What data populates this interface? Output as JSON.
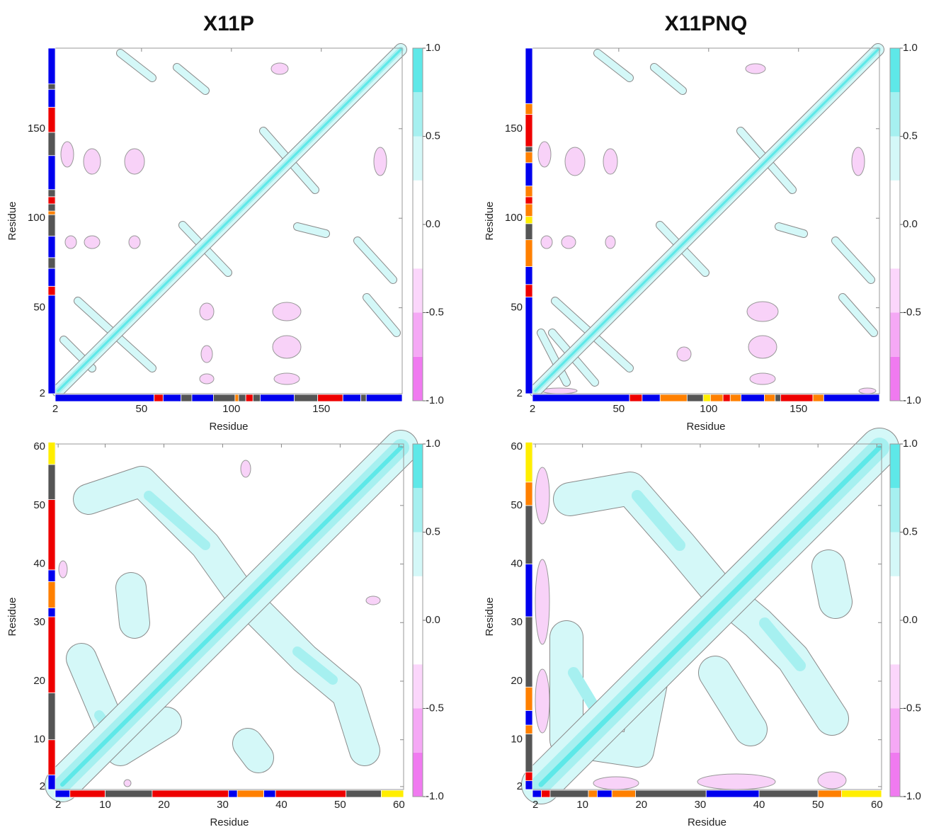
{
  "chart_data": [
    {
      "type": "contour",
      "title": "X11P",
      "xlabel": "Residue",
      "ylabel": "Residue",
      "xlim": [
        2,
        195
      ],
      "ylim": [
        2,
        195
      ],
      "xticks": [
        2,
        50,
        100,
        150
      ],
      "yticks": [
        2,
        50,
        100,
        150
      ],
      "colorbar": {
        "lim": [
          -1,
          1
        ],
        "ticks": [
          {
            "value": 1,
            "label": "1.0"
          },
          {
            "value": 0.5,
            "label": "0.5"
          },
          {
            "value": 0,
            "label": "0.0"
          },
          {
            "value": -0.5,
            "label": "-0.5"
          },
          {
            "value": -1,
            "label": "-1.0"
          }
        ],
        "levels": [
          -1,
          -0.75,
          -0.5,
          -0.25,
          0.25,
          0.5,
          0.75,
          1
        ],
        "colors": [
          "#f07af0",
          "#f5a8f5",
          "#fbd6fb",
          "#ffffff",
          "#d4f8f8",
          "#a6f0f0",
          "#5ee8e8"
        ]
      },
      "segments": [
        {
          "start": 2,
          "end": 57,
          "color": "#0000ee"
        },
        {
          "start": 57,
          "end": 62,
          "color": "#ee0000"
        },
        {
          "start": 62,
          "end": 72,
          "color": "#0000ee"
        },
        {
          "start": 72,
          "end": 78,
          "color": "#555555"
        },
        {
          "start": 78,
          "end": 90,
          "color": "#0000ee"
        },
        {
          "start": 90,
          "end": 102,
          "color": "#555555"
        },
        {
          "start": 102,
          "end": 104,
          "color": "#ff8000"
        },
        {
          "start": 104,
          "end": 108,
          "color": "#555555"
        },
        {
          "start": 108,
          "end": 112,
          "color": "#ee0000"
        },
        {
          "start": 112,
          "end": 116,
          "color": "#555555"
        },
        {
          "start": 116,
          "end": 135,
          "color": "#0000ee"
        },
        {
          "start": 135,
          "end": 148,
          "color": "#555555"
        },
        {
          "start": 148,
          "end": 162,
          "color": "#ee0000"
        },
        {
          "start": 162,
          "end": 172,
          "color": "#0000ee"
        },
        {
          "start": 172,
          "end": 175,
          "color": "#555555"
        },
        {
          "start": 175,
          "end": 195,
          "color": "#0000ee"
        }
      ]
    },
    {
      "type": "contour",
      "title": "X11PNQ",
      "xlabel": "Residue",
      "ylabel": "Residue",
      "xlim": [
        2,
        195
      ],
      "ylim": [
        2,
        195
      ],
      "xticks": [
        2,
        50,
        100,
        150
      ],
      "yticks": [
        2,
        50,
        100,
        150
      ],
      "colorbar": {
        "lim": [
          -1,
          1
        ],
        "ticks": [
          {
            "value": 1,
            "label": "1.0"
          },
          {
            "value": 0.5,
            "label": "0.5"
          },
          {
            "value": 0,
            "label": "0.0"
          },
          {
            "value": -0.5,
            "label": "-0.5"
          },
          {
            "value": -1,
            "label": "-1.0"
          }
        ],
        "levels": [
          -1,
          -0.75,
          -0.5,
          -0.25,
          0.25,
          0.5,
          0.75,
          1
        ],
        "colors": [
          "#f07af0",
          "#f5a8f5",
          "#fbd6fb",
          "#ffffff",
          "#d4f8f8",
          "#a6f0f0",
          "#5ee8e8"
        ]
      },
      "segments": [
        {
          "start": 2,
          "end": 56,
          "color": "#0000ee"
        },
        {
          "start": 56,
          "end": 63,
          "color": "#ee0000"
        },
        {
          "start": 63,
          "end": 73,
          "color": "#0000ee"
        },
        {
          "start": 73,
          "end": 88,
          "color": "#ff8000"
        },
        {
          "start": 88,
          "end": 97,
          "color": "#555555"
        },
        {
          "start": 97,
          "end": 101,
          "color": "#ffee00"
        },
        {
          "start": 101,
          "end": 108,
          "color": "#ff8000"
        },
        {
          "start": 108,
          "end": 112,
          "color": "#ee0000"
        },
        {
          "start": 112,
          "end": 118,
          "color": "#ff8000"
        },
        {
          "start": 118,
          "end": 131,
          "color": "#0000ee"
        },
        {
          "start": 131,
          "end": 137,
          "color": "#ff8000"
        },
        {
          "start": 137,
          "end": 140,
          "color": "#555555"
        },
        {
          "start": 140,
          "end": 158,
          "color": "#ee0000"
        },
        {
          "start": 158,
          "end": 164,
          "color": "#ff8000"
        },
        {
          "start": 164,
          "end": 195,
          "color": "#0000ee"
        }
      ]
    },
    {
      "type": "contour",
      "xlabel": "Residue",
      "ylabel": "Residue",
      "xlim": [
        1.5,
        60.8
      ],
      "ylim": [
        1.5,
        60.5
      ],
      "xticks": [
        2,
        10,
        20,
        30,
        40,
        50,
        60
      ],
      "yticks": [
        2,
        10,
        20,
        30,
        40,
        50,
        60
      ],
      "colorbar": {
        "lim": [
          -1,
          1
        ],
        "ticks": [
          {
            "value": 1,
            "label": "1.0"
          },
          {
            "value": 0.5,
            "label": "0.5"
          },
          {
            "value": 0,
            "label": "0.0"
          },
          {
            "value": -0.5,
            "label": "-0.5"
          },
          {
            "value": -1,
            "label": "-1.0"
          }
        ],
        "levels": [
          -1,
          -0.75,
          -0.5,
          -0.25,
          0.25,
          0.5,
          0.75,
          1
        ],
        "colors": [
          "#f07af0",
          "#f5a8f5",
          "#fbd6fb",
          "#ffffff",
          "#d4f8f8",
          "#a6f0f0",
          "#5ee8e8"
        ]
      },
      "segments": [
        {
          "start": 1.5,
          "end": 4,
          "color": "#0000ee"
        },
        {
          "start": 4,
          "end": 10,
          "color": "#ee0000"
        },
        {
          "start": 10,
          "end": 18,
          "color": "#555555"
        },
        {
          "start": 18,
          "end": 31,
          "color": "#ee0000"
        },
        {
          "start": 31,
          "end": 32.5,
          "color": "#0000ee"
        },
        {
          "start": 32.5,
          "end": 37,
          "color": "#ff8000"
        },
        {
          "start": 37,
          "end": 39,
          "color": "#0000ee"
        },
        {
          "start": 39,
          "end": 51,
          "color": "#ee0000"
        },
        {
          "start": 51,
          "end": 57,
          "color": "#555555"
        },
        {
          "start": 57,
          "end": 60.8,
          "color": "#ffee00"
        }
      ]
    },
    {
      "type": "contour",
      "xlabel": "Residue",
      "ylabel": "Residue",
      "xlim": [
        1.5,
        60.8
      ],
      "ylim": [
        1.5,
        60.5
      ],
      "xticks": [
        2,
        10,
        20,
        30,
        40,
        50,
        60
      ],
      "yticks": [
        2,
        10,
        20,
        30,
        40,
        50,
        60
      ],
      "colorbar": {
        "lim": [
          -1,
          1
        ],
        "ticks": [
          {
            "value": 1,
            "label": "1.0"
          },
          {
            "value": 0.5,
            "label": "0.5"
          },
          {
            "value": 0,
            "label": "0.0"
          },
          {
            "value": -0.5,
            "label": "-0.5"
          },
          {
            "value": -1,
            "label": "-1.0"
          }
        ],
        "levels": [
          -1,
          -0.75,
          -0.5,
          -0.25,
          0.25,
          0.5,
          0.75,
          1
        ],
        "colors": [
          "#f07af0",
          "#f5a8f5",
          "#fbd6fb",
          "#ffffff",
          "#d4f8f8",
          "#a6f0f0",
          "#5ee8e8"
        ]
      },
      "segments": [
        {
          "start": 1.5,
          "end": 3,
          "color": "#0000ee"
        },
        {
          "start": 3,
          "end": 4.5,
          "color": "#ee0000"
        },
        {
          "start": 4.5,
          "end": 11,
          "color": "#555555"
        },
        {
          "start": 11,
          "end": 12.5,
          "color": "#ff8000"
        },
        {
          "start": 12.5,
          "end": 15,
          "color": "#0000ee"
        },
        {
          "start": 15,
          "end": 19,
          "color": "#ff8000"
        },
        {
          "start": 19,
          "end": 31,
          "color": "#555555"
        },
        {
          "start": 31,
          "end": 40,
          "color": "#0000ee"
        },
        {
          "start": 40,
          "end": 50,
          "color": "#555555"
        },
        {
          "start": 50,
          "end": 54,
          "color": "#ff8000"
        },
        {
          "start": 54,
          "end": 60.8,
          "color": "#ffee00"
        }
      ]
    }
  ]
}
